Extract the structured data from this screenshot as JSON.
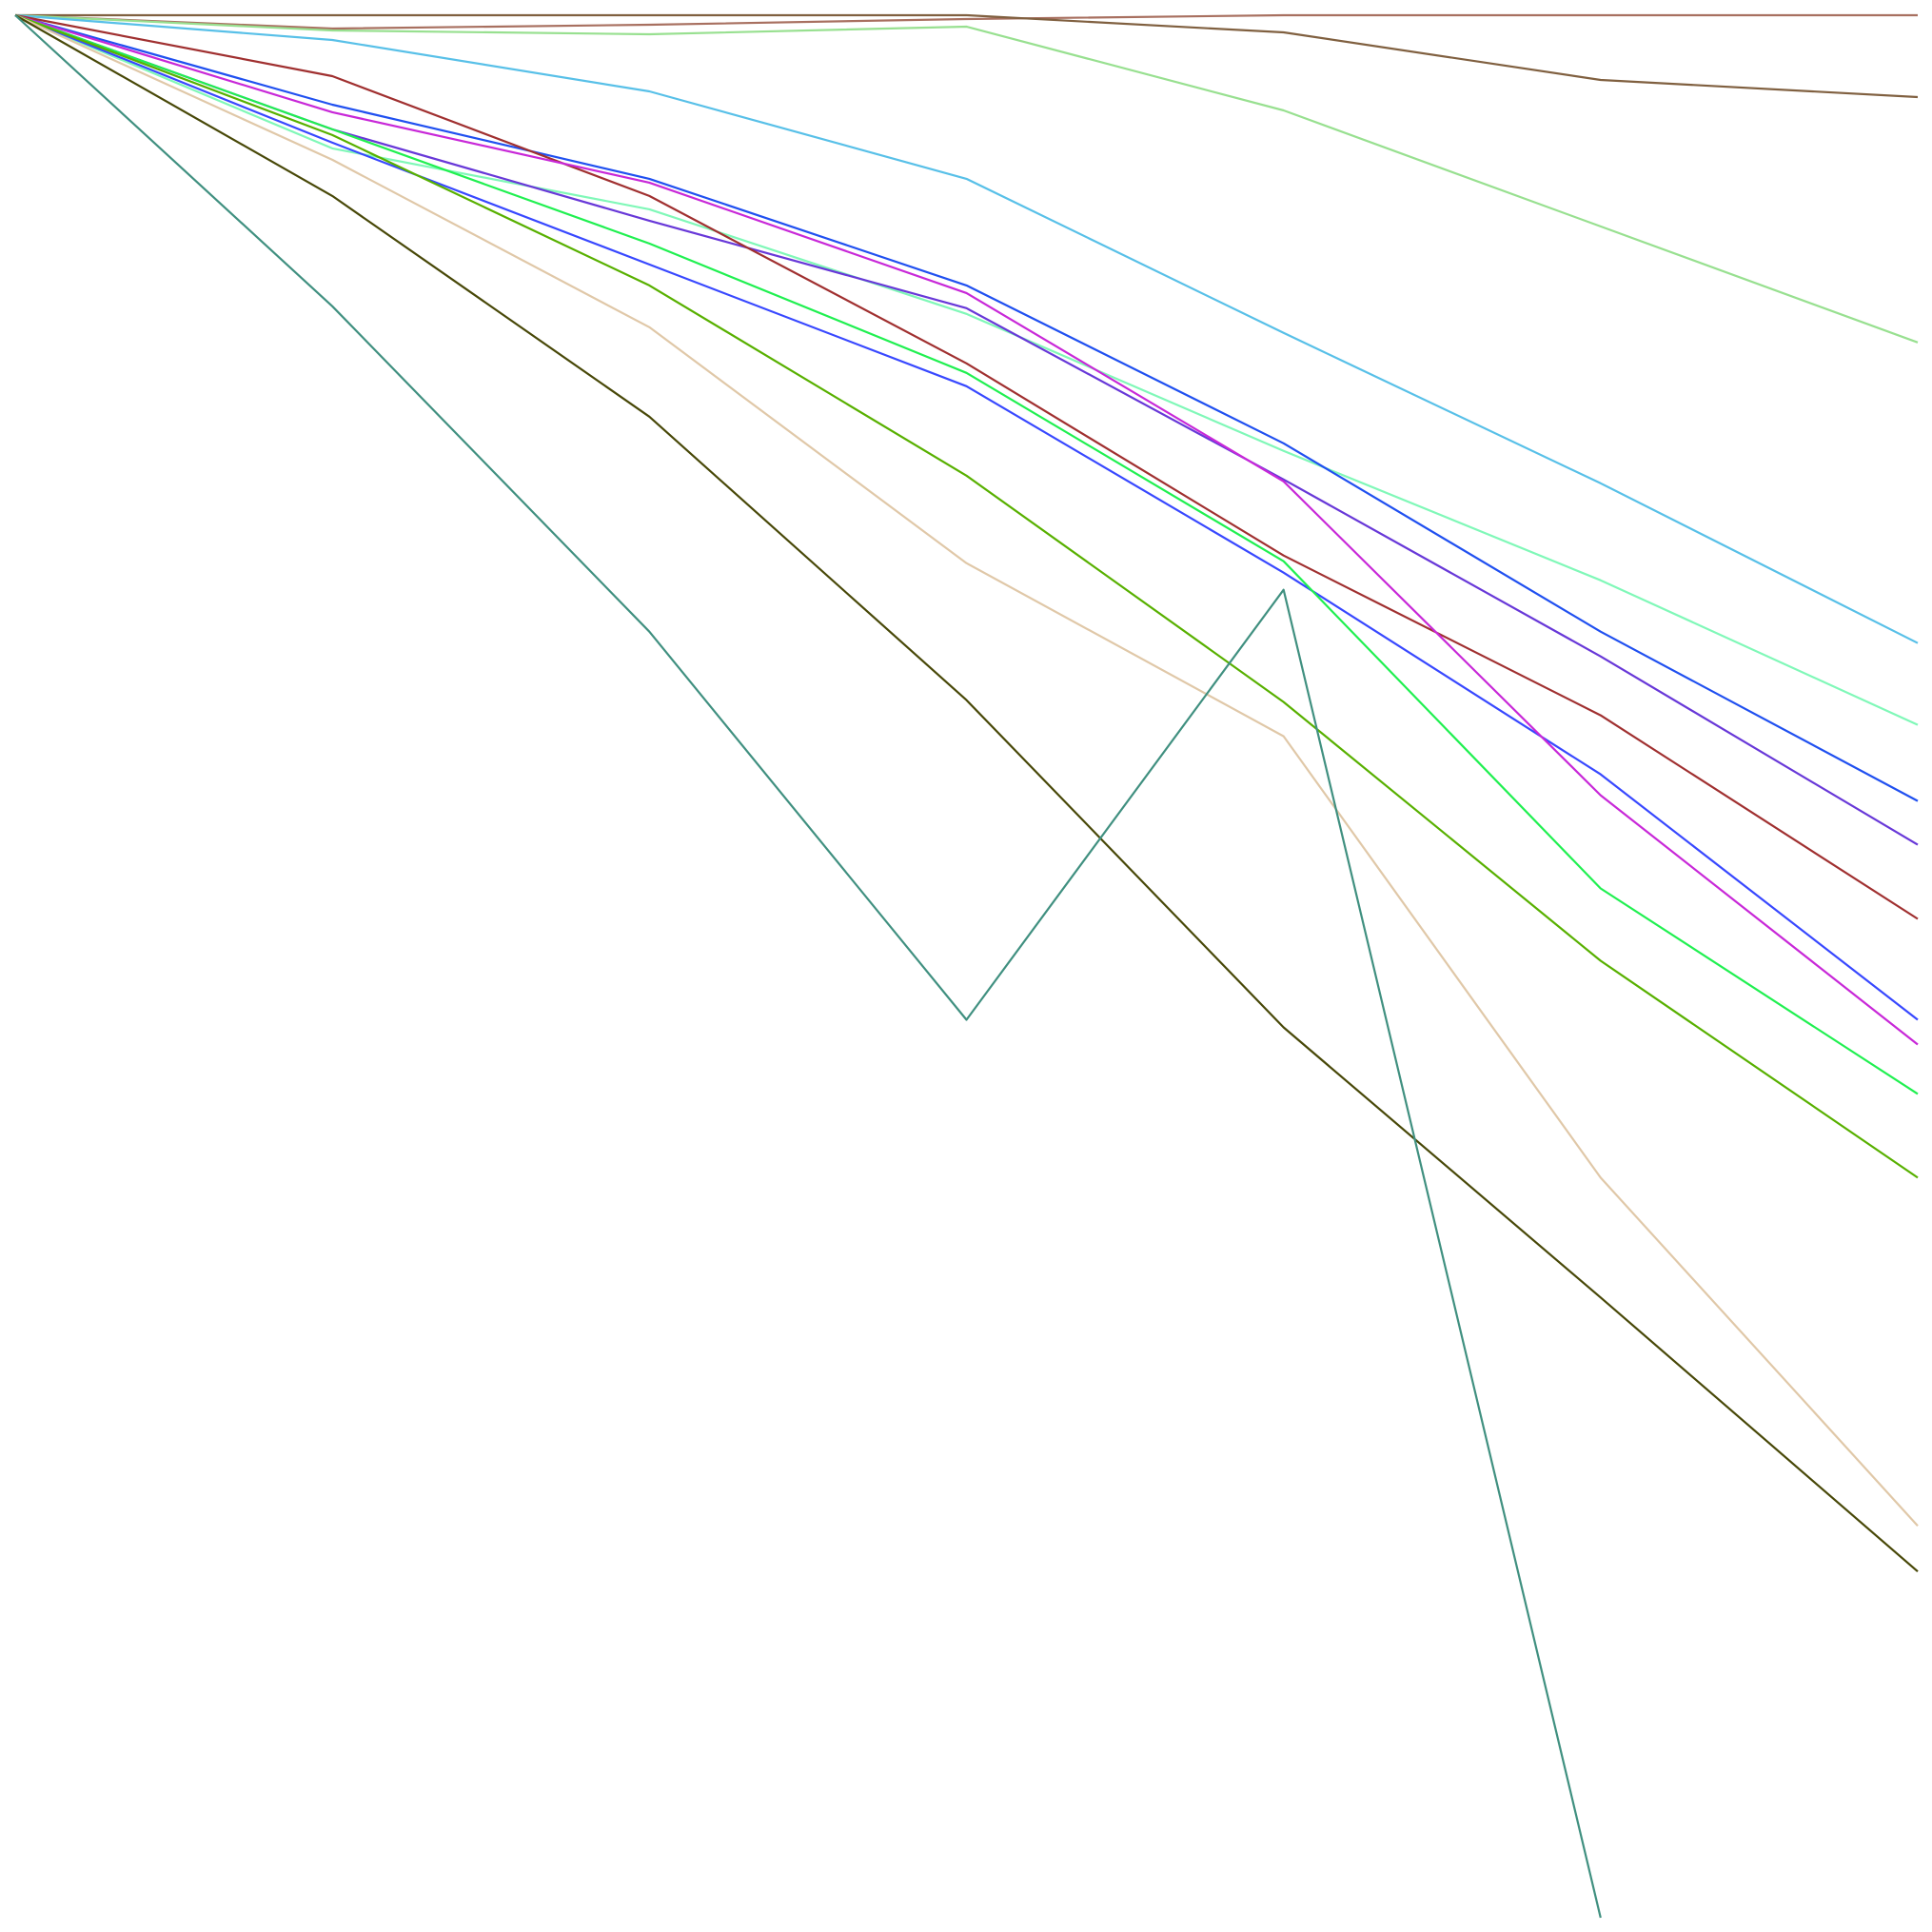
{
  "chart_data": {
    "type": "line",
    "title": "",
    "xlabel": "",
    "ylabel": "",
    "grid": false,
    "axes_visible": false,
    "x": [
      0,
      1,
      2,
      3,
      4,
      5,
      6
    ],
    "xlim": [
      0,
      6
    ],
    "ylim": [
      -100,
      0
    ],
    "series": [
      {
        "color": "#a87060",
        "values": [
          0,
          -0.7,
          -0.5,
          -0.2,
          0,
          0,
          0
        ]
      },
      {
        "color": "#806040",
        "values": [
          0,
          0,
          0,
          0,
          -0.9,
          -3.4,
          -4.3
        ]
      },
      {
        "color": "#98e090",
        "values": [
          0,
          -0.8,
          -1.0,
          -0.6,
          -5.0,
          -11.1,
          -17.2
        ]
      },
      {
        "color": "#58c0e8",
        "values": [
          0,
          -1.3,
          -4.0,
          -8.6,
          -16.7,
          -24.6,
          -33.0
        ]
      },
      {
        "color": "#80f8b8",
        "values": [
          0,
          -7.0,
          -10.2,
          -15.7,
          -22.9,
          -29.7,
          -37.3
        ]
      },
      {
        "color": "#2050f0",
        "values": [
          0,
          -4.7,
          -8.6,
          -14.2,
          -22.5,
          -32.4,
          -41.3
        ]
      },
      {
        "color": "#6838d8",
        "values": [
          0,
          -6.0,
          -10.8,
          -15.4,
          -24.4,
          -33.7,
          -43.6
        ]
      },
      {
        "color": "#a03030",
        "values": [
          0,
          -3.2,
          -9.5,
          -18.3,
          -28.4,
          -36.8,
          -47.5
        ]
      },
      {
        "color": "#3848ff",
        "values": [
          0,
          -6.7,
          -13.1,
          -19.5,
          -29.3,
          -39.9,
          -52.8
        ]
      },
      {
        "color": "#c828d8",
        "values": [
          0,
          -5.1,
          -8.8,
          -14.6,
          -24.5,
          -41.0,
          -54.1
        ]
      },
      {
        "color": "#20f050",
        "values": [
          0,
          -6.0,
          -12.0,
          -18.8,
          -28.7,
          -45.9,
          -56.7
        ]
      },
      {
        "color": "#58b000",
        "values": [
          0,
          -6.3,
          -14.2,
          -24.2,
          -36.1,
          -49.7,
          -61.1
        ]
      },
      {
        "color": "#e0c8a8",
        "values": [
          0,
          -7.6,
          -16.4,
          -28.8,
          -37.9,
          -61.1,
          -79.4
        ]
      },
      {
        "color": "#484808",
        "values": [
          0,
          -9.5,
          -21.1,
          -36.0,
          -53.2,
          -67.4,
          -81.8
        ]
      },
      {
        "color": "#409080",
        "values": [
          0,
          -15.3,
          -32.4,
          -52.8,
          -30.2,
          -100,
          null
        ]
      }
    ]
  }
}
